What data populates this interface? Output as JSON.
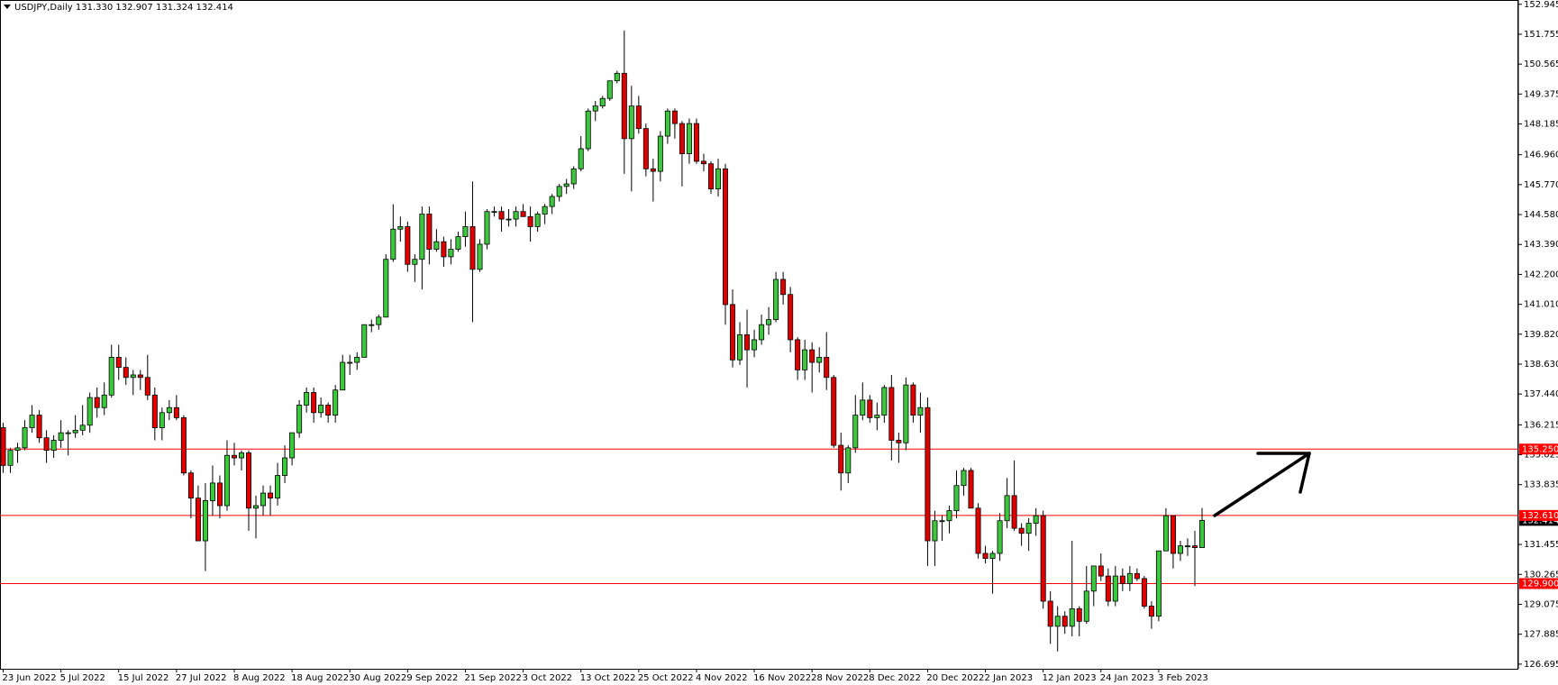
{
  "chart_data": {
    "type": "candlestick",
    "title": "USDJPY,Daily  131.330 132.907 131.324 132.414",
    "categories": [
      "23 Jun 2022",
      null,
      null,
      null,
      null,
      null,
      null,
      null,
      "5 Jul 2022",
      null,
      null,
      null,
      null,
      null,
      null,
      null,
      "15 Jul 2022",
      null,
      null,
      null,
      null,
      null,
      null,
      null,
      "27 Jul 2022",
      null,
      null,
      null,
      null,
      null,
      null,
      null,
      "8 Aug 2022",
      null,
      null,
      null,
      null,
      null,
      null,
      null,
      "18 Aug 2022",
      null,
      null,
      null,
      null,
      null,
      null,
      null,
      "30 Aug 2022",
      null,
      null,
      null,
      null,
      null,
      null,
      null,
      "9 Sep 2022",
      null,
      null,
      null,
      null,
      null,
      null,
      null,
      "21 Sep 2022",
      null,
      null,
      null,
      null,
      null,
      null,
      null,
      "3 Oct 2022",
      null,
      null,
      null,
      null,
      null,
      null,
      null,
      "13 Oct 2022",
      null,
      null,
      null,
      null,
      null,
      null,
      null,
      "25 Oct 2022",
      null,
      null,
      null,
      null,
      null,
      null,
      null,
      "4 Nov 2022",
      null,
      null,
      null,
      null,
      null,
      null,
      null,
      "16 Nov 2022",
      null,
      null,
      null,
      null,
      null,
      null,
      null,
      "28 Nov 2022",
      null,
      null,
      null,
      null,
      null,
      null,
      null,
      "8 Dec 2022",
      null,
      null,
      null,
      null,
      null,
      null,
      null,
      "20 Dec 2022",
      null,
      null,
      null,
      null,
      null,
      null,
      null,
      "2 Jan 2023",
      null,
      null,
      null,
      null,
      null,
      null,
      null,
      "12 Jan 2023",
      null,
      null,
      null,
      null,
      null,
      null,
      null,
      "24 Jan 2023",
      null,
      null,
      null,
      null,
      null,
      null,
      null,
      "3 Feb 2023",
      null,
      null,
      null,
      null,
      null,
      null
    ],
    "open": [
      136.1,
      134.6,
      135.2,
      135.3,
      136.1,
      136.6,
      135.7,
      135.2,
      135.6,
      135.9,
      135.9,
      136.0,
      136.2,
      137.3,
      136.9,
      137.4,
      138.9,
      138.5,
      138.1,
      138.2,
      138.1,
      137.4,
      136.1,
      136.7,
      136.9,
      136.5,
      134.3,
      133.3,
      131.6,
      133.2,
      133.9,
      133.0,
      135.0,
      134.9,
      135.1,
      132.9,
      133.0,
      133.5,
      133.3,
      134.2,
      134.9,
      135.9,
      137.0,
      137.5,
      136.7,
      137.0,
      136.6,
      137.6,
      138.7,
      138.7,
      138.9,
      140.2,
      140.2,
      140.5,
      142.8,
      144.0,
      144.1,
      142.6,
      142.8,
      144.6,
      143.2,
      143.5,
      142.9,
      143.2,
      143.7,
      144.1,
      142.4,
      143.4,
      144.7,
      144.7,
      144.4,
      144.4,
      144.7,
      144.5,
      144.1,
      144.6,
      144.9,
      145.3,
      145.7,
      145.8,
      146.4,
      147.2,
      148.7,
      148.9,
      149.2,
      149.9,
      150.2,
      147.6,
      148.9,
      148.0,
      146.4,
      146.3,
      147.7,
      148.7,
      148.2,
      147.0,
      148.2,
      146.7,
      146.6,
      145.6,
      146.4,
      141.0,
      138.8,
      139.8,
      139.2,
      139.6,
      140.2,
      140.4,
      142.0,
      141.4,
      139.6,
      138.4,
      139.2,
      138.7,
      138.9,
      138.1,
      135.4,
      134.3,
      135.3,
      136.6,
      137.2,
      136.5,
      136.6,
      137.7,
      135.6,
      135.5,
      137.8,
      136.6,
      136.9,
      131.6,
      132.4,
      132.4,
      132.8,
      133.8,
      134.4,
      132.9,
      131.1,
      130.9,
      131.1,
      132.4,
      133.4,
      132.1,
      131.9,
      132.3,
      132.6,
      129.2,
      128.2,
      128.6,
      128.2,
      128.9,
      128.4,
      129.6,
      130.6,
      130.2,
      129.2,
      130.2,
      129.9,
      130.3,
      130.1,
      129.0,
      128.6,
      131.2,
      132.6,
      131.1,
      131.4,
      131.4,
      131.33
    ],
    "high": [
      136.3,
      135.3,
      135.5,
      136.4,
      137.0,
      136.8,
      136.0,
      135.8,
      136.4,
      136.0,
      136.6,
      137.0,
      137.5,
      137.7,
      137.9,
      139.4,
      139.4,
      138.9,
      138.4,
      138.4,
      139.0,
      137.7,
      136.9,
      137.2,
      137.4,
      136.6,
      134.4,
      133.8,
      133.9,
      134.6,
      134.2,
      135.6,
      135.5,
      135.2,
      135.2,
      133.4,
      133.8,
      133.8,
      134.7,
      135.4,
      135.9,
      137.2,
      137.7,
      137.7,
      137.3,
      137.1,
      137.8,
      139.0,
      139.0,
      139.1,
      140.2,
      140.4,
      140.6,
      143.0,
      144.99,
      144.5,
      144.3,
      143.0,
      144.9,
      144.9,
      144.0,
      143.7,
      143.6,
      143.9,
      144.7,
      145.9,
      143.6,
      144.8,
      144.9,
      144.9,
      144.8,
      144.9,
      145.0,
      144.9,
      144.7,
      145.0,
      145.4,
      145.8,
      146.0,
      146.5,
      147.7,
      148.8,
      149.1,
      149.3,
      149.9,
      150.3,
      151.9,
      149.7,
      149.3,
      148.2,
      146.8,
      147.9,
      148.8,
      148.8,
      148.3,
      148.4,
      148.4,
      147.0,
      146.7,
      146.8,
      146.6,
      141.6,
      140.3,
      140.8,
      140.0,
      140.6,
      140.9,
      142.3,
      142.3,
      141.7,
      139.7,
      139.6,
      139.5,
      139.3,
      139.9,
      138.2,
      135.9,
      135.4,
      137.4,
      137.9,
      137.4,
      137.1,
      137.8,
      138.2,
      135.9,
      138.1,
      137.9,
      137.5,
      137.3,
      132.8,
      132.6,
      133.0,
      134.4,
      134.5,
      134.5,
      133.1,
      131.4,
      131.2,
      132.7,
      134.1,
      134.8,
      132.3,
      132.5,
      132.9,
      132.8,
      129.6,
      129.0,
      128.8,
      131.6,
      129.0,
      130.6,
      130.6,
      131.1,
      130.5,
      130.6,
      130.5,
      130.6,
      130.5,
      130.2,
      129.2,
      131.2,
      132.9,
      132.6,
      131.6,
      131.7,
      132.0,
      132.907
    ],
    "low": [
      134.3,
      134.3,
      134.7,
      135.2,
      135.9,
      135.5,
      134.7,
      134.9,
      135.3,
      135.0,
      135.7,
      135.8,
      135.9,
      136.5,
      136.6,
      137.3,
      138.0,
      137.8,
      137.4,
      137.6,
      137.2,
      135.6,
      135.6,
      136.4,
      136.4,
      134.2,
      132.5,
      131.6,
      130.4,
      132.6,
      132.5,
      132.8,
      134.6,
      134.4,
      132.0,
      131.7,
      132.6,
      132.6,
      133.0,
      133.9,
      134.6,
      135.7,
      136.7,
      136.3,
      136.5,
      136.3,
      136.3,
      137.6,
      138.2,
      138.4,
      138.9,
      139.9,
      140.0,
      140.5,
      142.7,
      143.5,
      142.3,
      141.9,
      141.6,
      142.6,
      143.1,
      142.5,
      142.6,
      143.1,
      143.3,
      140.3,
      142.3,
      143.2,
      144.5,
      143.9,
      144.1,
      144.1,
      144.5,
      143.5,
      143.9,
      144.2,
      144.6,
      145.1,
      145.4,
      145.6,
      146.3,
      147.1,
      148.3,
      148.8,
      149.1,
      149.8,
      146.2,
      145.5,
      147.8,
      146.1,
      145.1,
      145.9,
      147.4,
      147.6,
      145.7,
      146.6,
      146.6,
      146.3,
      145.4,
      145.3,
      140.2,
      138.5,
      138.6,
      137.7,
      138.9,
      139.4,
      139.8,
      140.3,
      141.0,
      139.1,
      138.0,
      138.0,
      137.5,
      138.3,
      137.6,
      135.3,
      133.6,
      133.9,
      135.1,
      136.4,
      136.3,
      136.0,
      136.3,
      134.8,
      134.7,
      135.2,
      136.3,
      135.9,
      130.6,
      130.6,
      131.6,
      131.9,
      132.5,
      133.4,
      132.9,
      130.9,
      130.7,
      129.5,
      130.8,
      132.1,
      132.0,
      131.4,
      131.2,
      131.8,
      128.9,
      127.5,
      127.2,
      127.9,
      127.8,
      127.8,
      128.3,
      129.0,
      130.0,
      129.0,
      129.0,
      129.6,
      129.6,
      130.0,
      128.9,
      128.1,
      128.4,
      131.2,
      130.5,
      130.8,
      131.0,
      129.8,
      131.324
    ],
    "close": [
      134.6,
      135.2,
      135.3,
      136.1,
      136.6,
      135.7,
      135.2,
      135.6,
      135.9,
      135.9,
      136.0,
      136.2,
      137.3,
      136.9,
      137.4,
      138.9,
      138.5,
      138.1,
      138.2,
      138.1,
      137.4,
      136.1,
      136.7,
      136.9,
      136.5,
      134.3,
      133.3,
      131.6,
      133.2,
      133.9,
      133.0,
      135.0,
      134.9,
      135.1,
      132.9,
      133.0,
      133.5,
      133.3,
      134.2,
      134.9,
      135.9,
      137.0,
      137.5,
      136.7,
      137.0,
      136.6,
      137.6,
      138.7,
      138.7,
      138.9,
      140.2,
      140.2,
      140.5,
      142.8,
      144.0,
      144.1,
      142.6,
      142.8,
      144.6,
      143.2,
      143.5,
      142.9,
      143.2,
      143.7,
      144.1,
      142.4,
      143.4,
      144.7,
      144.7,
      144.4,
      144.4,
      144.7,
      144.5,
      144.1,
      144.6,
      144.9,
      145.3,
      145.7,
      145.8,
      146.4,
      147.2,
      148.7,
      148.9,
      149.2,
      149.9,
      150.2,
      147.6,
      148.9,
      148.0,
      146.4,
      146.3,
      147.7,
      148.7,
      148.2,
      147.0,
      148.2,
      146.7,
      146.6,
      145.6,
      146.4,
      141.0,
      138.8,
      139.8,
      139.2,
      139.6,
      140.2,
      140.4,
      142.0,
      141.4,
      139.6,
      138.4,
      139.2,
      138.7,
      138.9,
      138.1,
      135.4,
      134.3,
      135.3,
      136.6,
      137.2,
      136.5,
      136.6,
      137.7,
      135.6,
      135.5,
      137.8,
      136.6,
      136.9,
      131.6,
      132.4,
      132.4,
      132.8,
      133.8,
      134.4,
      132.9,
      131.1,
      130.9,
      131.1,
      132.4,
      133.4,
      132.1,
      131.9,
      132.3,
      132.6,
      129.2,
      128.2,
      128.6,
      128.2,
      128.9,
      128.4,
      129.6,
      130.6,
      130.2,
      129.2,
      130.2,
      129.9,
      130.3,
      130.1,
      129.0,
      128.6,
      131.2,
      132.6,
      131.1,
      131.4,
      131.4,
      131.33,
      132.414
    ],
    "up_color": "#3cc83c",
    "down_color": "#e00000",
    "ylim": [
      126.51,
      153.08
    ],
    "yticks": [
      152.945,
      151.755,
      150.565,
      149.375,
      148.185,
      {
        "value": 146.96,
        "label": "146.960"
      },
      {
        "value": 145.77,
        "label": "145.770"
      },
      {
        "value": 144.58,
        "label": "144.580"
      },
      {
        "value": 143.39,
        "label": "143.390"
      },
      {
        "value": 142.2,
        "label": "142.200"
      },
      {
        "value": 141.01,
        "label": "141.010"
      },
      {
        "value": 139.82,
        "label": "139.820"
      },
      {
        "value": 138.63,
        "label": "138.630"
      },
      {
        "value": 137.44,
        "label": "137.440"
      },
      136.215,
      135.025,
      133.835,
      131.455,
      130.265,
      129.075,
      127.885,
      126.695
    ],
    "hlines": [
      {
        "value": 135.25,
        "label": "135.250"
      },
      {
        "value": 132.61,
        "label": "132.610"
      },
      {
        "value": 129.9,
        "label": "129.900"
      }
    ],
    "hline_color": "#ff0000"
  }
}
